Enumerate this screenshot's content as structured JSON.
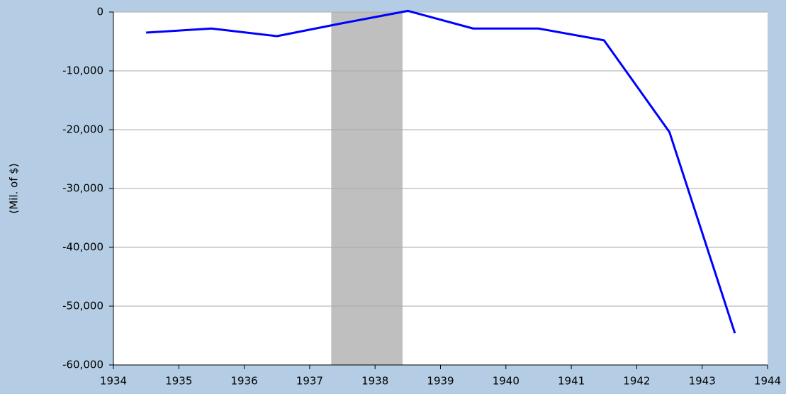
{
  "chart_data": {
    "type": "line",
    "y_label": "(Mil. of $)",
    "x": [
      1934.5,
      1935.5,
      1936.5,
      1937.5,
      1938.5,
      1939.5,
      1940.5,
      1941.5,
      1942.5,
      1943.5
    ],
    "values": [
      -3500,
      -2800,
      -4100,
      -1900,
      200,
      -2800,
      -2800,
      -4800,
      -20400,
      -54600
    ],
    "color": "#0000ff",
    "shaded_regions": [
      [
        1937.33,
        1938.42
      ]
    ],
    "shade_color": "#bfbfbf",
    "xlim": [
      1934,
      1944
    ],
    "xticks": [
      1934,
      1935,
      1936,
      1937,
      1938,
      1939,
      1940,
      1941,
      1942,
      1943,
      1944
    ],
    "ylim": [
      -60000,
      0
    ],
    "yticks": [
      {
        "value": -60000,
        "label": "-60,000"
      },
      {
        "value": -50000,
        "label": "-50,000"
      },
      {
        "value": -40000,
        "label": "-40,000"
      },
      {
        "value": -30000,
        "label": "-30,000"
      },
      {
        "value": -20000,
        "label": "-20,000"
      },
      {
        "value": -10000,
        "label": "-10,000"
      },
      0
    ],
    "grid": true
  }
}
